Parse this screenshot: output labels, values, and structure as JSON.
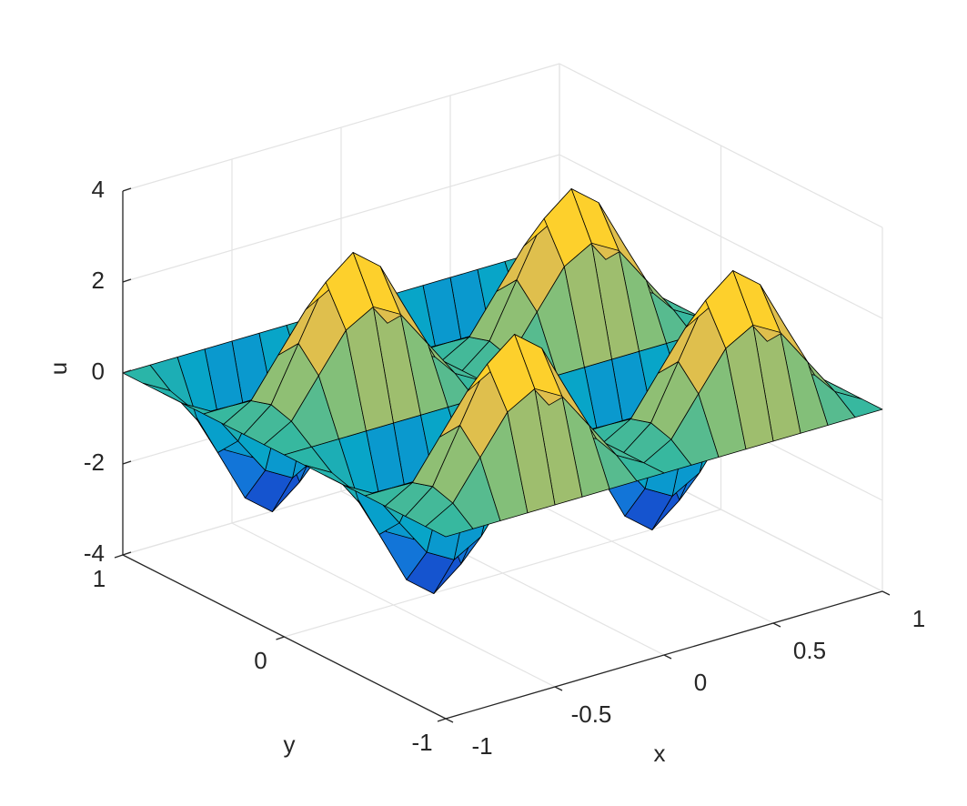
{
  "chart_data": {
    "type": "surface",
    "xlabel": "x",
    "ylabel": "y",
    "zlabel": "u",
    "x": [
      -1,
      -0.875,
      -0.75,
      -0.625,
      -0.5,
      -0.375,
      -0.25,
      -0.125,
      0,
      0.125,
      0.25,
      0.375,
      0.5,
      0.625,
      0.75,
      0.875,
      1
    ],
    "y": [
      -1,
      -0.875,
      -0.75,
      -0.625,
      -0.5,
      -0.375,
      -0.25,
      -0.125,
      0,
      0.125,
      0.25,
      0.375,
      0.5,
      0.625,
      0.75,
      0.875,
      1
    ],
    "z": [
      [
        0,
        0,
        0,
        0,
        0,
        0,
        0,
        0,
        0,
        0,
        0,
        0,
        0,
        0,
        0,
        0,
        0
      ],
      [
        0,
        0.34,
        1.17,
        1.99,
        2.33,
        1.99,
        1.17,
        0.34,
        0,
        0.34,
        1.17,
        1.99,
        2.33,
        1.99,
        1.17,
        0.34,
        0
      ],
      [
        0,
        0.48,
        1.65,
        2.82,
        3.3,
        2.82,
        1.65,
        0.48,
        0,
        0.48,
        1.65,
        2.82,
        3.3,
        2.82,
        1.65,
        0.48,
        0
      ],
      [
        0,
        0.34,
        1.17,
        1.99,
        2.33,
        1.99,
        1.17,
        0.34,
        0,
        0.34,
        1.17,
        1.99,
        2.33,
        1.99,
        1.17,
        0.34,
        0
      ],
      [
        0,
        0,
        0,
        0,
        0,
        0,
        0,
        0,
        0,
        0,
        0,
        0,
        0,
        0,
        0,
        0,
        0
      ],
      [
        0,
        -0.34,
        -1.17,
        -1.99,
        -2.33,
        -1.99,
        -1.17,
        -0.34,
        0,
        -0.34,
        -1.17,
        -1.99,
        -2.33,
        -1.99,
        -1.17,
        -0.34,
        0
      ],
      [
        0,
        -0.48,
        -1.65,
        -2.82,
        -3.3,
        -2.82,
        -1.65,
        -0.48,
        0,
        -0.48,
        -1.65,
        -2.82,
        -3.3,
        -2.82,
        -1.65,
        -0.48,
        0
      ],
      [
        0,
        -0.34,
        -1.17,
        -1.99,
        -2.33,
        -1.99,
        -1.17,
        -0.34,
        0,
        -0.34,
        -1.17,
        -1.99,
        -2.33,
        -1.99,
        -1.17,
        -0.34,
        0
      ],
      [
        0,
        0,
        0,
        0,
        0,
        0,
        0,
        0,
        0,
        0,
        0,
        0,
        0,
        0,
        0,
        0,
        0
      ],
      [
        0,
        0.34,
        1.17,
        1.99,
        2.33,
        1.99,
        1.17,
        0.34,
        0,
        0.34,
        1.17,
        1.99,
        2.33,
        1.99,
        1.17,
        0.34,
        0
      ],
      [
        0,
        0.48,
        1.65,
        2.82,
        3.3,
        2.82,
        1.65,
        0.48,
        0,
        0.48,
        1.65,
        2.82,
        3.3,
        2.82,
        1.65,
        0.48,
        0
      ],
      [
        0,
        0.34,
        1.17,
        1.99,
        2.33,
        1.99,
        1.17,
        0.34,
        0,
        0.34,
        1.17,
        1.99,
        2.33,
        1.99,
        1.17,
        0.34,
        0
      ],
      [
        0,
        0,
        0,
        0,
        0,
        0,
        0,
        0,
        0,
        0,
        0,
        0,
        0,
        0,
        0,
        0,
        0
      ],
      [
        0,
        -0.34,
        -1.17,
        -1.99,
        -2.33,
        -1.99,
        -1.17,
        -0.34,
        0,
        -0.34,
        -1.17,
        -1.99,
        -2.33,
        -1.99,
        -1.17,
        -0.34,
        0
      ],
      [
        0,
        -0.48,
        -1.65,
        -2.82,
        -3.3,
        -2.82,
        -1.65,
        -0.48,
        0,
        -0.48,
        -1.65,
        -2.82,
        -3.3,
        -2.82,
        -1.65,
        -0.48,
        0
      ],
      [
        0,
        -0.34,
        -1.17,
        -1.99,
        -2.33,
        -1.99,
        -1.17,
        -0.34,
        0,
        -0.34,
        -1.17,
        -1.99,
        -2.33,
        -1.99,
        -1.17,
        -0.34,
        0
      ],
      [
        0,
        0,
        0,
        0,
        0,
        0,
        0,
        0,
        0,
        0,
        0,
        0,
        0,
        0,
        0,
        0,
        0
      ]
    ],
    "xlim": [
      -1,
      1
    ],
    "ylim": [
      -1,
      1
    ],
    "zlim": [
      -4,
      4
    ],
    "xticks": [
      -1,
      -0.5,
      0,
      0.5,
      1
    ],
    "yticks": [
      -1,
      0,
      1
    ],
    "zticks": [
      -4,
      -2,
      0,
      2,
      4
    ],
    "grid": true,
    "colormap": [
      "#352a87",
      "#0f5cdd",
      "#1481d6",
      "#06a4ca",
      "#2eb7a4",
      "#87bf77",
      "#d1bb59",
      "#fec832",
      "#f9fb0e"
    ],
    "edge_color": "#000000"
  }
}
